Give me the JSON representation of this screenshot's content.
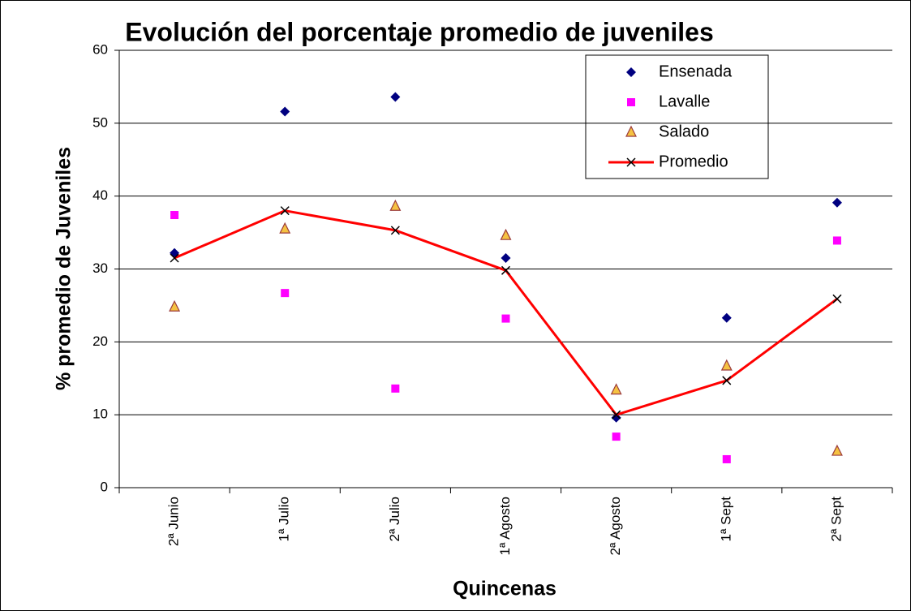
{
  "chart_data": {
    "type": "line",
    "title": "Evolución del porcentaje promedio de juveniles",
    "x_label": "Quincenas",
    "y_label": "% promedio de  Juveniles",
    "categories": [
      "2ª Junio",
      "1ª Julio",
      "2ª Julio",
      "1ª Agosto",
      "2ª Agosto",
      "1ª Sept",
      "2ª Sept"
    ],
    "ylim": [
      0,
      60
    ],
    "yticks": [
      0,
      10,
      20,
      30,
      40,
      50,
      60
    ],
    "grid": true,
    "legend": "top-right",
    "series": [
      {
        "name": "Ensenada",
        "color": "#000080",
        "marker": "diamond",
        "line": false,
        "values": [
          32.2,
          51.6,
          53.6,
          31.5,
          9.6,
          23.3,
          39.1
        ]
      },
      {
        "name": "Lavalle",
        "color": "#ff00ff",
        "marker": "square",
        "line": false,
        "values": [
          37.4,
          26.7,
          13.6,
          23.2,
          7.0,
          3.9,
          33.9
        ]
      },
      {
        "name": "Salado",
        "color": "#f5c242",
        "marker": "triangle",
        "line": false,
        "values": [
          24.8,
          35.5,
          38.6,
          34.6,
          13.4,
          16.7,
          5.0
        ]
      },
      {
        "name": "Promedio",
        "color": "#ff0000",
        "marker": "x",
        "marker_color": "#000000",
        "line": true,
        "values": [
          31.5,
          38.0,
          35.3,
          29.8,
          10.0,
          14.7,
          25.9
        ]
      }
    ]
  }
}
